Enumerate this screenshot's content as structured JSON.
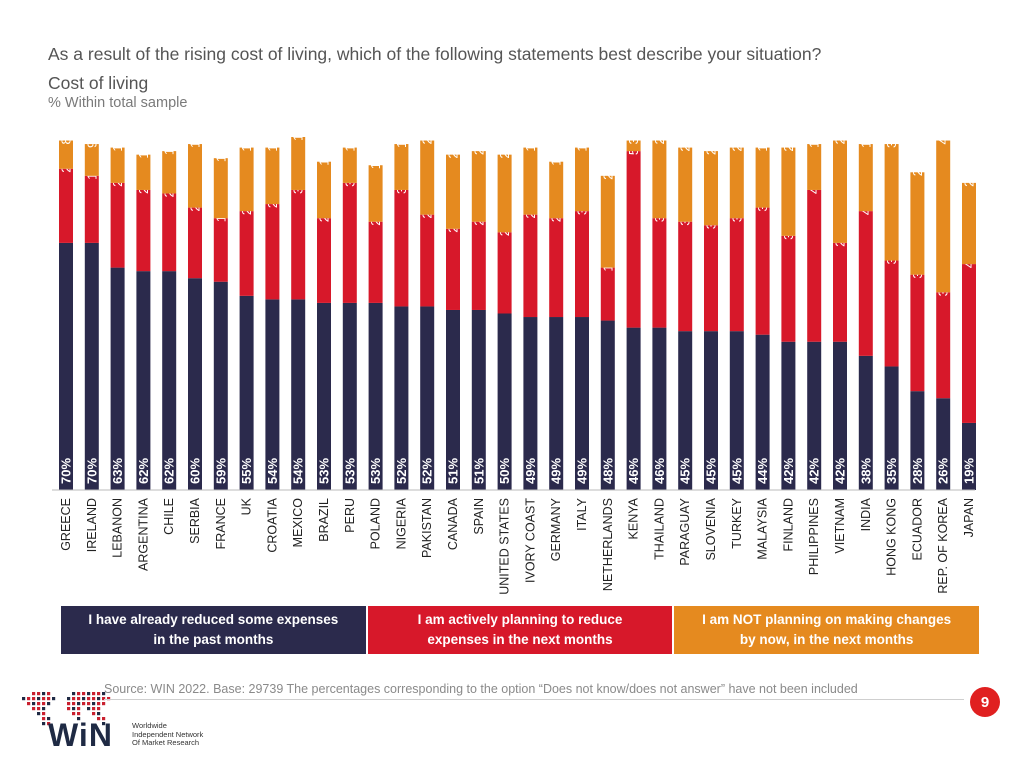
{
  "header": {
    "question": "As a result of the rising cost of living, which of the following statements best describe your situation?",
    "subject": "Cost of living",
    "base": "% Within total sample"
  },
  "colors": {
    "reduced": "#2b2a4c",
    "planning": "#d7182a",
    "not_planning": "#e58a1f"
  },
  "chart_data": {
    "type": "bar",
    "stacked": true,
    "orientation": "vertical",
    "title": "Cost of living",
    "ylabel": "% Within total sample",
    "categories": [
      "GREECE",
      "IRELAND",
      "LEBANON",
      "ARGENTINA",
      "CHILE",
      "SERBIA",
      "FRANCE",
      "UK",
      "CROATIA",
      "MEXICO",
      "BRAZIL",
      "PERU",
      "POLAND",
      "NIGERIA",
      "PAKISTAN",
      "CANADA",
      "SPAIN",
      "UNITED STATES",
      "IVORY COAST",
      "GERMANY",
      "ITALY",
      "NETHERLANDS",
      "KENYA",
      "THAILAND",
      "PARAGUAY",
      "SLOVENIA",
      "TURKEY",
      "MALAYSIA",
      "FINLAND",
      "PHILIPPINES",
      "VIETNAM",
      "INDIA",
      "HONG KONG",
      "ECUADOR",
      "REP. OF KOREA",
      "JAPAN"
    ],
    "series": [
      {
        "name": "I have already reduced some expenses in the past months",
        "values": [
          70,
          70,
          63,
          62,
          62,
          60,
          59,
          55,
          54,
          54,
          53,
          53,
          53,
          52,
          52,
          51,
          51,
          50,
          49,
          49,
          49,
          48,
          46,
          46,
          45,
          45,
          45,
          44,
          42,
          42,
          42,
          38,
          35,
          28,
          26,
          19
        ]
      },
      {
        "name": "I am actively planning to reduce expenses in the next months",
        "values": [
          21,
          19,
          24,
          23,
          22,
          20,
          18,
          24,
          27,
          31,
          24,
          34,
          23,
          33,
          26,
          23,
          25,
          23,
          29,
          28,
          30,
          15,
          50,
          31,
          31,
          30,
          32,
          36,
          30,
          43,
          28,
          41,
          30,
          33,
          30,
          45
        ]
      },
      {
        "name": "I am NOT planning on making changes by now, in the next months",
        "values": [
          8,
          9,
          10,
          10,
          12,
          18,
          17,
          18,
          16,
          15,
          16,
          10,
          16,
          13,
          21,
          21,
          20,
          22,
          19,
          16,
          18,
          26,
          3,
          22,
          21,
          21,
          20,
          17,
          25,
          13,
          29,
          19,
          33,
          29,
          43,
          23
        ]
      }
    ],
    "ylim": [
      0,
      100
    ],
    "legend_position": "bottom"
  },
  "legend": [
    {
      "label": "I have already reduced some expenses in the past months"
    },
    {
      "label": "I am actively planning to reduce expenses in the next months"
    },
    {
      "label": "I am NOT planning on making changes by now, in the next months"
    }
  ],
  "footer": {
    "source": "Source: WIN 2022. Base: 29739",
    "note": " The percentages corresponding to the option “Does not know/does not answer” have not been included",
    "page": "9",
    "logo_text": "WiN",
    "logo_sub": [
      "Worldwide",
      "Independent Network",
      "Of Market Research"
    ]
  }
}
